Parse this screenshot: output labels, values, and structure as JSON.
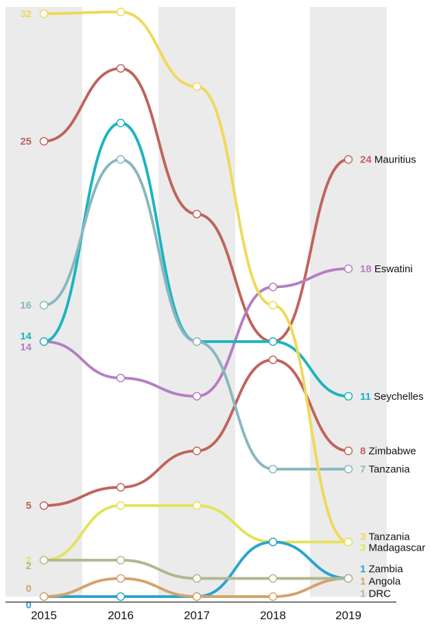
{
  "chart_data": {
    "type": "line",
    "x": [
      "2015",
      "2016",
      "2017",
      "2018",
      "2019"
    ],
    "series": [
      {
        "name": "Mauritius",
        "color": "#c0645c",
        "values": [
          25,
          29,
          21,
          14,
          24
        ],
        "start_label": "25",
        "end_label": "24"
      },
      {
        "name": "Eswatini",
        "color": "#b57fc2",
        "values": [
          14,
          12,
          11,
          17,
          18
        ],
        "start_label": "14",
        "end_label": "18"
      },
      {
        "name": "Seychelles",
        "color": "#1cb4c0",
        "values": [
          14,
          26,
          14,
          14,
          11
        ],
        "start_label": "14",
        "end_label": "11"
      },
      {
        "name": "Zimbabwe",
        "color": "#c0645c",
        "values": [
          5,
          6,
          8,
          13,
          8
        ],
        "start_label": "5",
        "end_label": "8"
      },
      {
        "name": "Tanzania",
        "color": "#8ab7c0",
        "values": [
          16,
          24,
          14,
          7,
          7
        ],
        "start_label": "16",
        "end_label": "7"
      },
      {
        "name": "Tanzania",
        "color": "#f0d95a",
        "values": [
          32,
          32.1,
          28,
          16,
          3
        ],
        "start_label": "32",
        "end_label": "3"
      },
      {
        "name": "Madagascar",
        "color": "#e3e35a",
        "values": [
          2,
          5,
          5,
          3,
          3
        ],
        "start_label": "2",
        "end_label": "3"
      },
      {
        "name": "Zambia",
        "color": "#2aa4cf",
        "values": [
          0,
          0,
          0,
          3,
          1
        ],
        "start_label": "0",
        "end_label": "1"
      },
      {
        "name": "Angola",
        "color": "#d4a26a",
        "values": [
          0,
          1,
          0,
          0,
          1
        ],
        "start_label": "0",
        "end_label": "1"
      },
      {
        "name": "DRC",
        "color": "#b2b78f",
        "values": [
          2,
          2,
          1,
          1,
          1
        ],
        "start_label": "2",
        "end_label": "1"
      }
    ],
    "ylim": [
      0,
      32
    ],
    "grid": "alternating vertical bands",
    "legend": "labels at line ends",
    "band_color": "#ebebeb"
  }
}
